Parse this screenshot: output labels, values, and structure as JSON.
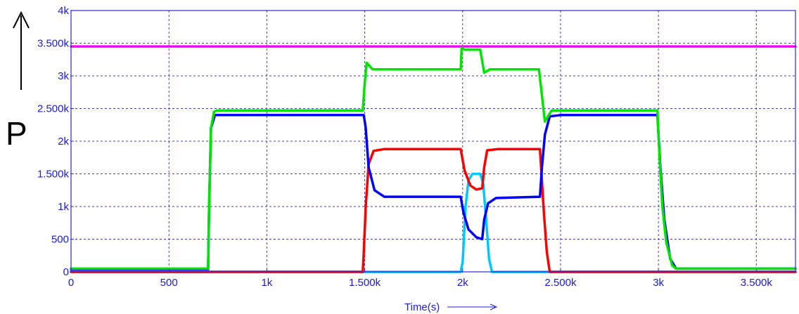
{
  "chart_data": {
    "type": "line",
    "xlabel": "Time(s)",
    "ylabel": "P",
    "xlim": [
      0,
      3700
    ],
    "ylim": [
      0,
      4000
    ],
    "grid": true,
    "x_ticks": [
      {
        "value": 0,
        "label": "0"
      },
      {
        "value": 500,
        "label": "500"
      },
      {
        "value": 1000,
        "label": "1k"
      },
      {
        "value": 1500,
        "label": "1.500k"
      },
      {
        "value": 2000,
        "label": "2k"
      },
      {
        "value": 2500,
        "label": "2.500k"
      },
      {
        "value": 3000,
        "label": "3k"
      },
      {
        "value": 3500,
        "label": "3.500k"
      }
    ],
    "y_ticks": [
      {
        "value": 0,
        "label": "0"
      },
      {
        "value": 500,
        "label": "500"
      },
      {
        "value": 1000,
        "label": "1k"
      },
      {
        "value": 1500,
        "label": "1.500k"
      },
      {
        "value": 2000,
        "label": "2k"
      },
      {
        "value": 2500,
        "label": "2.500k"
      },
      {
        "value": 3000,
        "label": "3k"
      },
      {
        "value": 3500,
        "label": "3.500k"
      },
      {
        "value": 4000,
        "label": "4k"
      }
    ],
    "series": [
      {
        "color": "#ff00ff",
        "points": [
          [
            0,
            3450
          ],
          [
            3700,
            3450
          ]
        ]
      },
      {
        "color": "#00c8ff",
        "points": [
          [
            0,
            0
          ],
          [
            1990,
            0
          ],
          [
            2000,
            150
          ],
          [
            2015,
            1000
          ],
          [
            2030,
            1400
          ],
          [
            2050,
            1500
          ],
          [
            2090,
            1500
          ],
          [
            2105,
            1350
          ],
          [
            2120,
            800
          ],
          [
            2135,
            200
          ],
          [
            2150,
            0
          ],
          [
            3700,
            0
          ]
        ]
      },
      {
        "color": "#ff0000",
        "points": [
          [
            0,
            0
          ],
          [
            1490,
            0
          ],
          [
            1495,
            300
          ],
          [
            1505,
            1000
          ],
          [
            1520,
            1650
          ],
          [
            1545,
            1850
          ],
          [
            1600,
            1880
          ],
          [
            1990,
            1880
          ],
          [
            2010,
            1550
          ],
          [
            2040,
            1320
          ],
          [
            2070,
            1260
          ],
          [
            2100,
            1280
          ],
          [
            2110,
            1600
          ],
          [
            2125,
            1860
          ],
          [
            2180,
            1880
          ],
          [
            2395,
            1880
          ],
          [
            2415,
            900
          ],
          [
            2430,
            300
          ],
          [
            2445,
            0
          ],
          [
            3700,
            0
          ]
        ]
      },
      {
        "color": "#0000ff",
        "points": [
          [
            0,
            40
          ],
          [
            700,
            40
          ],
          [
            705,
            1000
          ],
          [
            715,
            2200
          ],
          [
            735,
            2400
          ],
          [
            1495,
            2400
          ],
          [
            1505,
            2200
          ],
          [
            1520,
            1600
          ],
          [
            1550,
            1250
          ],
          [
            1600,
            1150
          ],
          [
            1990,
            1150
          ],
          [
            2005,
            900
          ],
          [
            2030,
            650
          ],
          [
            2070,
            530
          ],
          [
            2100,
            500
          ],
          [
            2110,
            800
          ],
          [
            2130,
            1050
          ],
          [
            2170,
            1130
          ],
          [
            2395,
            1150
          ],
          [
            2405,
            1600
          ],
          [
            2420,
            2100
          ],
          [
            2445,
            2380
          ],
          [
            2500,
            2400
          ],
          [
            2995,
            2400
          ],
          [
            3010,
            1600
          ],
          [
            3030,
            800
          ],
          [
            3060,
            200
          ],
          [
            3090,
            50
          ],
          [
            3700,
            50
          ]
        ]
      },
      {
        "color": "#00e600",
        "points": [
          [
            0,
            50
          ],
          [
            700,
            50
          ],
          [
            705,
            1000
          ],
          [
            715,
            2200
          ],
          [
            730,
            2450
          ],
          [
            745,
            2470
          ],
          [
            1490,
            2470
          ],
          [
            1500,
            2900
          ],
          [
            1510,
            3200
          ],
          [
            1540,
            3100
          ],
          [
            1990,
            3100
          ],
          [
            1995,
            3430
          ],
          [
            2010,
            3400
          ],
          [
            2090,
            3400
          ],
          [
            2110,
            3050
          ],
          [
            2140,
            3100
          ],
          [
            2390,
            3100
          ],
          [
            2405,
            2700
          ],
          [
            2420,
            2300
          ],
          [
            2440,
            2400
          ],
          [
            2455,
            2470
          ],
          [
            2995,
            2470
          ],
          [
            3005,
            1800
          ],
          [
            3020,
            1000
          ],
          [
            3040,
            450
          ],
          [
            3070,
            100
          ],
          [
            3090,
            50
          ],
          [
            3700,
            50
          ]
        ]
      }
    ]
  }
}
